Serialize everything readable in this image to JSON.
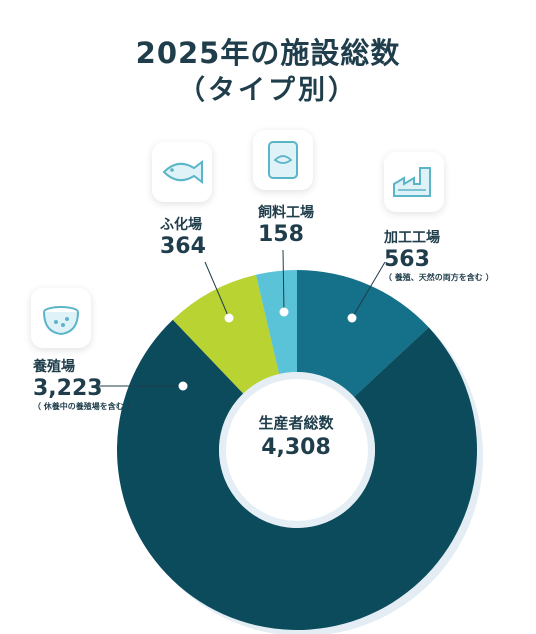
{
  "title_line1": "2025年の施設総数",
  "title_line2": "（タイプ別）",
  "center": {
    "label": "生産者総数",
    "value": "4,308"
  },
  "colors": {
    "farm": "#0c4b5c",
    "hatchery": "#b8d332",
    "feed": "#5bc3d8",
    "processing": "#15708a",
    "text": "#1f3d4b"
  },
  "chart_data": {
    "type": "pie",
    "variant": "donut",
    "title": "2025年の施設総数（タイプ別）",
    "total_label": "生産者総数",
    "total": 4308,
    "slices": [
      {
        "name": "加工工場",
        "value": 563,
        "value_label": "563",
        "note": "（ 養殖、天然の両方を含む ）",
        "icon": "factory-icon"
      },
      {
        "name": "養殖場",
        "value": 3223,
        "value_label": "3,223",
        "note": "（ 休養中の養殖場を含む ）",
        "icon": "fish-net-icon"
      },
      {
        "name": "ふ化場",
        "value": 364,
        "value_label": "364",
        "note": "",
        "icon": "fish-icon"
      },
      {
        "name": "飼料工場",
        "value": 158,
        "value_label": "158",
        "note": "",
        "icon": "feed-bag-icon"
      }
    ]
  }
}
